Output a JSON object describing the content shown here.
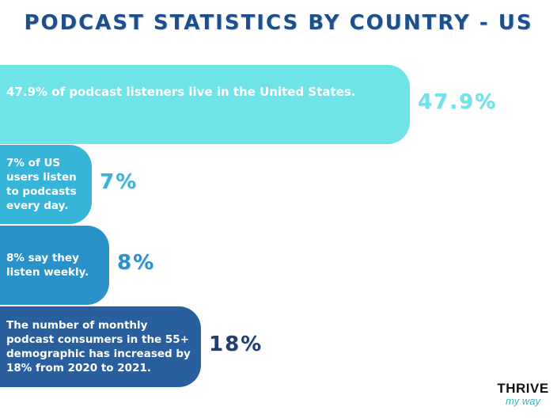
{
  "title": "PODCAST STATISTICS BY COUNTRY - US",
  "brand": {
    "line1": "THRIVE",
    "line2": "my way"
  },
  "chart_data": {
    "type": "bar",
    "orientation": "horizontal",
    "title": "PODCAST STATISTICS BY COUNTRY - US",
    "bars": [
      {
        "label": "47.9% of podcast listeners live in the United States.",
        "value_label": "47.9%",
        "value": 47.9,
        "color": "#6ee3e8",
        "label_color": "#6ee3e8"
      },
      {
        "label": "7% of US users listen to podcasts every day.",
        "value_label": "7%",
        "value": 7,
        "color": "#37b5d9",
        "label_color": "#37b5d9"
      },
      {
        "label": "8% say they listen weekly.",
        "value_label": "8%",
        "value": 8,
        "color": "#2b92c9",
        "label_color": "#2b92c9"
      },
      {
        "label": "The number of monthly podcast consumers in the 55+ demographic has increased by 18% from 2020 to 2021.",
        "value_label": "18%",
        "value": 18,
        "color": "#2a5f9e",
        "label_color": "#233d6e"
      }
    ]
  }
}
